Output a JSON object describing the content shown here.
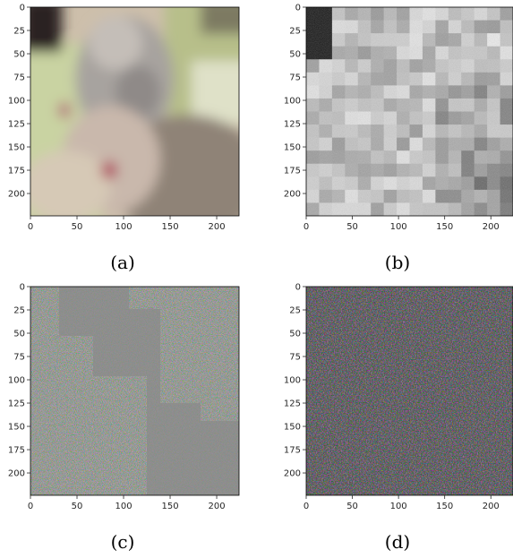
{
  "chart_data": [
    {
      "type": "heatmap",
      "caption": "(a)",
      "x_ticks": [
        "0",
        "50",
        "100",
        "150",
        "200"
      ],
      "y_ticks": [
        "0",
        "25",
        "50",
        "75",
        "100",
        "125",
        "150",
        "175",
        "200"
      ],
      "xlim": [
        0,
        224
      ],
      "ylim": [
        224,
        0
      ],
      "grid": false,
      "colormap": "rgb",
      "content": "blurred-cat-photo"
    },
    {
      "type": "heatmap",
      "caption": "(b)",
      "x_ticks": [
        "0",
        "50",
        "100",
        "150",
        "200"
      ],
      "y_ticks": [
        "0",
        "25",
        "50",
        "75",
        "100",
        "125",
        "150",
        "175",
        "200"
      ],
      "xlim": [
        0,
        224
      ],
      "ylim": [
        224,
        0
      ],
      "grid": false,
      "colormap": "grayscale",
      "content": "blocky-grayscale-saliency"
    },
    {
      "type": "heatmap",
      "caption": "(c)",
      "x_ticks": [
        "0",
        "50",
        "100",
        "150",
        "200"
      ],
      "y_ticks": [
        "0",
        "25",
        "50",
        "75",
        "100",
        "125",
        "150",
        "175",
        "200"
      ],
      "xlim": [
        0,
        224
      ],
      "ylim": [
        224,
        0
      ],
      "grid": false,
      "colormap": "rgb",
      "content": "colored-noise-over-gray-with-mask"
    },
    {
      "type": "heatmap",
      "caption": "(d)",
      "x_ticks": [
        "0",
        "50",
        "100",
        "150",
        "200"
      ],
      "y_ticks": [
        "0",
        "25",
        "50",
        "75",
        "100",
        "125",
        "150",
        "175",
        "200"
      ],
      "xlim": [
        0,
        224
      ],
      "ylim": [
        224,
        0
      ],
      "grid": false,
      "colormap": "rgb",
      "content": "dense-colored-noise"
    }
  ]
}
